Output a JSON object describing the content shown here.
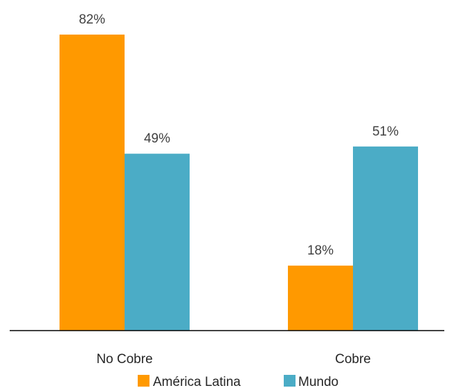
{
  "chart_data": {
    "type": "bar",
    "categories": [
      "No Cobre",
      "Cobre"
    ],
    "series": [
      {
        "name": "América Latina",
        "values": [
          82,
          18
        ],
        "labels": [
          "82%",
          "18%"
        ],
        "color": "#FF9900"
      },
      {
        "name": "Mundo",
        "values": [
          49,
          51
        ],
        "labels": [
          "49%",
          "51%"
        ],
        "color": "#4BACC6"
      }
    ],
    "ylim": [
      0,
      100
    ],
    "grid": false,
    "legend_position": "bottom"
  }
}
